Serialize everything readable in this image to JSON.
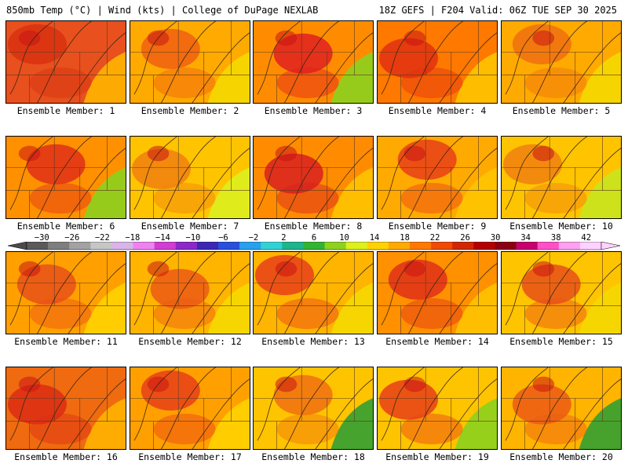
{
  "header": {
    "left": "850mb Temp (°C) | Wind (kts) | College of DuPage NEXLAB",
    "right": "18Z GEFS | F204 Valid: 06Z TUE SEP 30 2025"
  },
  "colorbar": {
    "labels": [
      "−30",
      "−26",
      "−22",
      "−18",
      "−14",
      "−10",
      "−6",
      "−2",
      "2",
      "6",
      "10",
      "14",
      "18",
      "22",
      "26",
      "30",
      "34",
      "38",
      "42"
    ],
    "values": [
      -30,
      -26,
      -22,
      -18,
      -14,
      -10,
      -6,
      -2,
      2,
      6,
      10,
      14,
      18,
      22,
      26,
      30,
      34,
      38,
      42
    ],
    "colors": [
      "#5a5a5a",
      "#7e7e7e",
      "#a2a2a2",
      "#c6c6c6",
      "#d8b4e8",
      "#ee82ee",
      "#d23cd2",
      "#8c28c8",
      "#3c28b4",
      "#2850dc",
      "#28a0f0",
      "#32d2d2",
      "#1eb48c",
      "#32b432",
      "#8cd21e",
      "#dcf01e",
      "#ffd200",
      "#ffaa00",
      "#ff7800",
      "#f04b00",
      "#d22800",
      "#b40000",
      "#8c0014",
      "#c8006e",
      "#ff50c8",
      "#ffa0f0",
      "#ffd2ff"
    ]
  },
  "panels": [
    {
      "label": "Ensemble Member: 1",
      "tint": "#e8501e",
      "accent": "#d83010",
      "cool": "#ffb400"
    },
    {
      "label": "Ensemble Member: 2",
      "tint": "#ffaa00",
      "accent": "#f06010",
      "cool": "#f5d800"
    },
    {
      "label": "Ensemble Member: 3",
      "tint": "#ff8c00",
      "accent": "#e02020",
      "cool": "#8cd21e"
    },
    {
      "label": "Ensemble Member: 4",
      "tint": "#ff7800",
      "accent": "#e03010",
      "cool": "#ffc400"
    },
    {
      "label": "Ensemble Member: 5",
      "tint": "#ffaa00",
      "accent": "#f07010",
      "cool": "#f5d800"
    },
    {
      "label": "Ensemble Member: 6",
      "tint": "#ff9000",
      "accent": "#e03018",
      "cool": "#8cd21e"
    },
    {
      "label": "Ensemble Member: 7",
      "tint": "#ffc400",
      "accent": "#f08010",
      "cool": "#dcf01e"
    },
    {
      "label": "Ensemble Member: 8",
      "tint": "#ff8c00",
      "accent": "#d82020",
      "cool": "#ffc400"
    },
    {
      "label": "Ensemble Member: 9",
      "tint": "#ffaa00",
      "accent": "#e84018",
      "cool": "#ffc400"
    },
    {
      "label": "Ensemble Member: 10",
      "tint": "#ffc400",
      "accent": "#f08010",
      "cool": "#c8e61e"
    },
    {
      "label": "Ensemble Member: 11",
      "tint": "#ffa000",
      "accent": "#e85018",
      "cool": "#ffd200"
    },
    {
      "label": "Ensemble Member: 12",
      "tint": "#ffb400",
      "accent": "#ec5a14",
      "cool": "#f5d800"
    },
    {
      "label": "Ensemble Member: 13",
      "tint": "#ffb400",
      "accent": "#e84018",
      "cool": "#f5d800"
    },
    {
      "label": "Ensemble Member: 14",
      "tint": "#ff9000",
      "accent": "#e03018",
      "cool": "#ffc400"
    },
    {
      "label": "Ensemble Member: 15",
      "tint": "#ffc400",
      "accent": "#e85018",
      "cool": "#f5d800"
    },
    {
      "label": "Ensemble Member: 16",
      "tint": "#f06a10",
      "accent": "#dc2c14",
      "cool": "#ffb400"
    },
    {
      "label": "Ensemble Member: 17",
      "tint": "#ffa000",
      "accent": "#e84018",
      "cool": "#ffd200"
    },
    {
      "label": "Ensemble Member: 18",
      "tint": "#ffc400",
      "accent": "#f07010",
      "cool": "#32a032"
    },
    {
      "label": "Ensemble Member: 19",
      "tint": "#ffc400",
      "accent": "#e84018",
      "cool": "#8cd21e"
    },
    {
      "label": "Ensemble Member: 20",
      "tint": "#ffb400",
      "accent": "#ec5a14",
      "cool": "#32a032"
    }
  ]
}
